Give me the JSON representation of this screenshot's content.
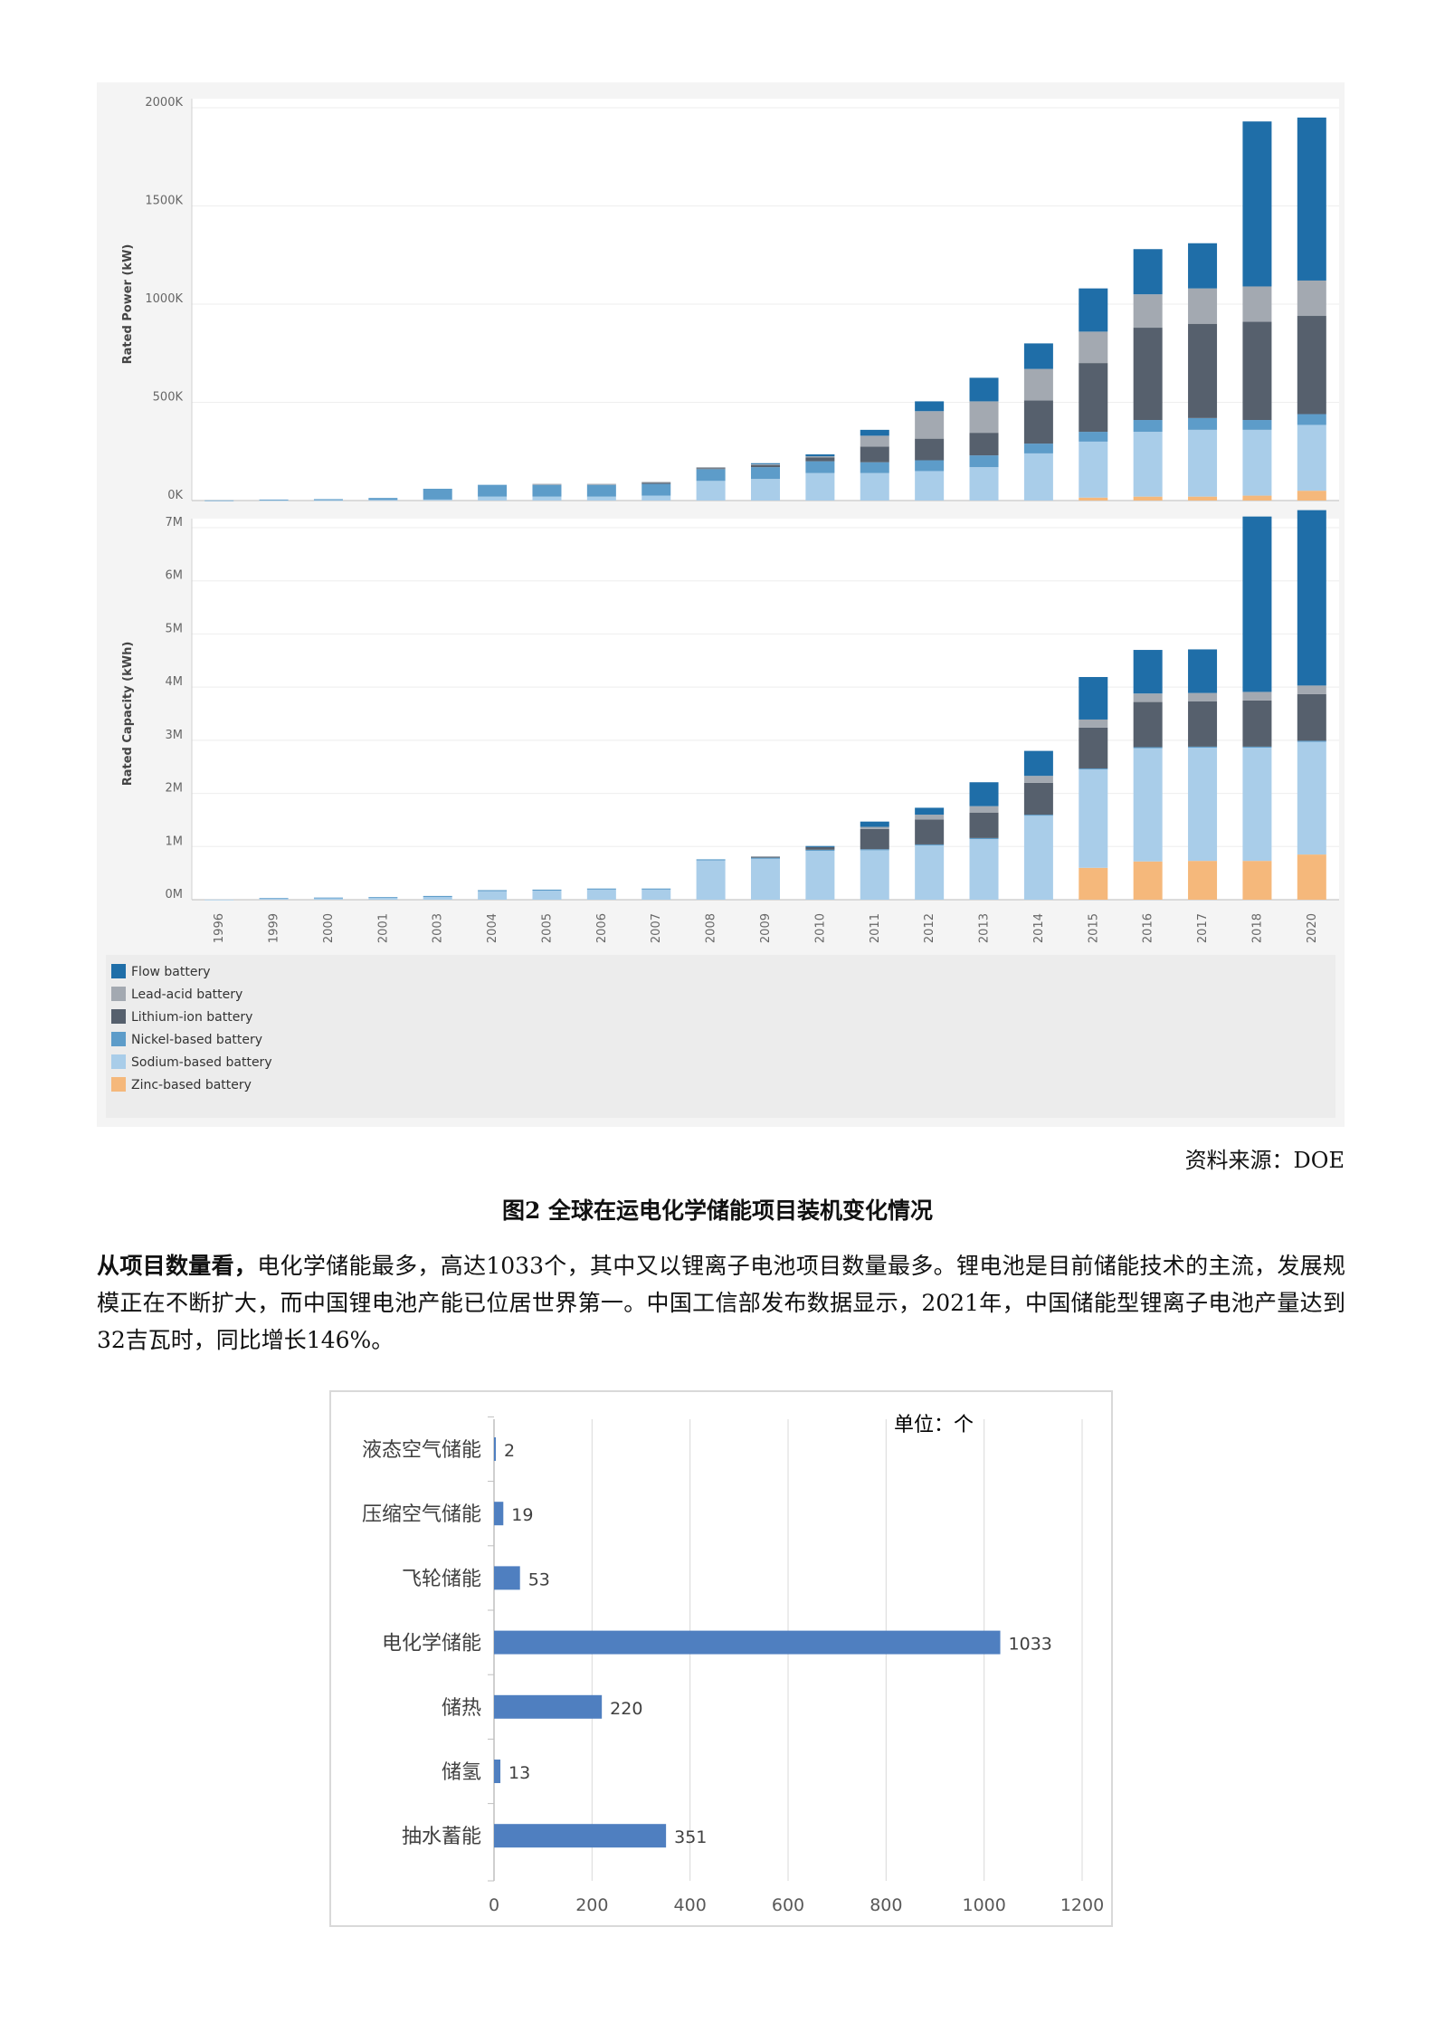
{
  "figure1": {
    "legend": [
      {
        "key": "flow",
        "label": "Flow battery",
        "color": "#1f6ea8"
      },
      {
        "key": "lead",
        "label": "Lead-acid battery",
        "color": "#a3a9b1"
      },
      {
        "key": "lithium",
        "label": "Lithium-ion battery",
        "color": "#56606d"
      },
      {
        "key": "nickel",
        "label": "Nickel-based battery",
        "color": "#5d9cc9"
      },
      {
        "key": "sodium",
        "label": "Sodium-based battery",
        "color": "#a9cde9"
      },
      {
        "key": "zinc",
        "label": "Zinc-based battery",
        "color": "#f5b87b"
      }
    ],
    "source": "资料来源：DOE"
  },
  "chart_data": [
    {
      "type": "bar",
      "stacked": true,
      "ylabel": "Rated Power (kW)",
      "ylim": [
        0,
        2000000
      ],
      "yticks": [
        0,
        500000,
        1000000,
        1500000,
        2000000
      ],
      "ytick_labels": [
        "0K",
        "500K",
        "1000K",
        "1500K",
        "2000K"
      ],
      "categories": [
        "1996",
        "1999",
        "2000",
        "2001",
        "2003",
        "2004",
        "2005",
        "2006",
        "2007",
        "2008",
        "2009",
        "2010",
        "2011",
        "2012",
        "2013",
        "2014",
        "2015",
        "2016",
        "2017",
        "2018",
        "2020"
      ],
      "series": [
        {
          "key": "zinc",
          "name": "Zinc-based battery",
          "color": "#f5b87b",
          "values": [
            0,
            0,
            0,
            0,
            0,
            0,
            0,
            0,
            0,
            0,
            0,
            0,
            0,
            0,
            0,
            0,
            15000,
            20000,
            20000,
            25000,
            50000
          ]
        },
        {
          "key": "sodium",
          "name": "Sodium-based battery",
          "color": "#a9cde9",
          "values": [
            0,
            2000,
            2000,
            3000,
            5000,
            20000,
            20000,
            20000,
            25000,
            100000,
            110000,
            140000,
            140000,
            150000,
            170000,
            240000,
            285000,
            330000,
            340000,
            335000,
            335000
          ]
        },
        {
          "key": "nickel",
          "name": "Nickel-based battery",
          "color": "#5d9cc9",
          "values": [
            1000,
            3000,
            5000,
            10000,
            55000,
            60000,
            60000,
            60000,
            60000,
            60000,
            60000,
            60000,
            55000,
            55000,
            60000,
            50000,
            50000,
            60000,
            60000,
            50000,
            55000
          ]
        },
        {
          "key": "lithium",
          "name": "Lithium-ion battery",
          "color": "#56606d",
          "values": [
            0,
            0,
            0,
            0,
            0,
            0,
            0,
            0,
            5000,
            5000,
            10000,
            20000,
            80000,
            110000,
            115000,
            220000,
            350000,
            470000,
            480000,
            500000,
            500000
          ]
        },
        {
          "key": "lead",
          "name": "Lead-acid battery",
          "color": "#a3a9b1",
          "values": [
            0,
            0,
            0,
            0,
            0,
            0,
            5000,
            5000,
            5000,
            5000,
            5000,
            5000,
            55000,
            140000,
            160000,
            160000,
            160000,
            170000,
            180000,
            180000,
            180000
          ]
        },
        {
          "key": "flow",
          "name": "Flow battery",
          "color": "#1f6ea8",
          "values": [
            0,
            0,
            0,
            0,
            0,
            0,
            0,
            0,
            0,
            0,
            5000,
            10000,
            30000,
            50000,
            120000,
            130000,
            220000,
            230000,
            230000,
            840000,
            830000
          ]
        }
      ]
    },
    {
      "type": "bar",
      "stacked": true,
      "ylabel": "Rated Capacity (kWh)",
      "ylim": [
        0,
        7000000
      ],
      "yticks": [
        0,
        1000000,
        2000000,
        3000000,
        4000000,
        5000000,
        6000000,
        7000000
      ],
      "ytick_labels": [
        "0M",
        "1M",
        "2M",
        "3M",
        "4M",
        "5M",
        "6M",
        "7M"
      ],
      "categories": [
        "1996",
        "1999",
        "2000",
        "2001",
        "2003",
        "2004",
        "2005",
        "2006",
        "2007",
        "2008",
        "2009",
        "2010",
        "2011",
        "2012",
        "2013",
        "2014",
        "2015",
        "2016",
        "2017",
        "2018",
        "2020"
      ],
      "series": [
        {
          "key": "zinc",
          "name": "Zinc-based battery",
          "color": "#f5b87b",
          "values": [
            0,
            0,
            0,
            0,
            0,
            0,
            0,
            0,
            0,
            0,
            0,
            0,
            0,
            0,
            0,
            0,
            600000,
            720000,
            730000,
            730000,
            850000
          ]
        },
        {
          "key": "sodium",
          "name": "Sodium-based battery",
          "color": "#a9cde9",
          "values": [
            2000,
            20000,
            30000,
            40000,
            50000,
            160000,
            170000,
            190000,
            190000,
            740000,
            770000,
            920000,
            930000,
            1020000,
            1140000,
            1580000,
            1850000,
            2130000,
            2130000,
            2130000,
            2120000
          ]
        },
        {
          "key": "nickel",
          "name": "Nickel-based battery",
          "color": "#5d9cc9",
          "values": [
            0,
            10000,
            10000,
            10000,
            20000,
            20000,
            20000,
            20000,
            20000,
            20000,
            20000,
            20000,
            20000,
            20000,
            20000,
            20000,
            20000,
            20000,
            20000,
            20000,
            20000
          ]
        },
        {
          "key": "lithium",
          "name": "Lithium-ion battery",
          "color": "#56606d",
          "values": [
            0,
            0,
            0,
            0,
            0,
            0,
            0,
            0,
            0,
            0,
            20000,
            50000,
            380000,
            470000,
            480000,
            600000,
            770000,
            850000,
            850000,
            870000,
            880000
          ]
        },
        {
          "key": "lead",
          "name": "Lead-acid battery",
          "color": "#a3a9b1",
          "values": [
            0,
            0,
            0,
            0,
            0,
            0,
            0,
            0,
            0,
            0,
            0,
            0,
            40000,
            90000,
            120000,
            130000,
            150000,
            160000,
            160000,
            160000,
            160000
          ]
        },
        {
          "key": "flow",
          "name": "Flow battery",
          "color": "#1f6ea8",
          "values": [
            0,
            0,
            0,
            0,
            0,
            0,
            0,
            0,
            0,
            0,
            0,
            20000,
            100000,
            130000,
            450000,
            470000,
            800000,
            820000,
            820000,
            3300000,
            3300000
          ]
        }
      ]
    },
    {
      "type": "bar",
      "orientation": "horizontal",
      "unit_label": "单位：个",
      "categories": [
        "液态空气储能",
        "压缩空气储能",
        "飞轮储能",
        "电化学储能",
        "储热",
        "储氢",
        "抽水蓄能"
      ],
      "values": [
        2,
        19,
        53,
        1033,
        220,
        13,
        351
      ],
      "value_labels": [
        "2",
        "19",
        "53",
        "1033",
        "220",
        "13",
        "351"
      ],
      "xlim": [
        0,
        1200
      ],
      "xticks": [
        0,
        200,
        400,
        600,
        800,
        1000,
        1200
      ],
      "xtick_labels": [
        "0",
        "200",
        "400",
        "600",
        "800",
        "1000",
        "1200"
      ],
      "bar_color": "#4f7fc0",
      "grid": true
    }
  ],
  "caption": "图2 全球在运电化学储能项目装机变化情况",
  "paragraph": {
    "lead": "从项目数量看，",
    "text": "电化学储能最多，高达1033个，其中又以锂离子电池项目数量最多。锂电池是目前储能技术的主流，发展规模正在不断扩大，而中国锂电池产能已位居世界第一。中国工信部发布数据显示，2021年，中国储能型锂离子电池产量达到32吉瓦时，同比增长146%。"
  }
}
